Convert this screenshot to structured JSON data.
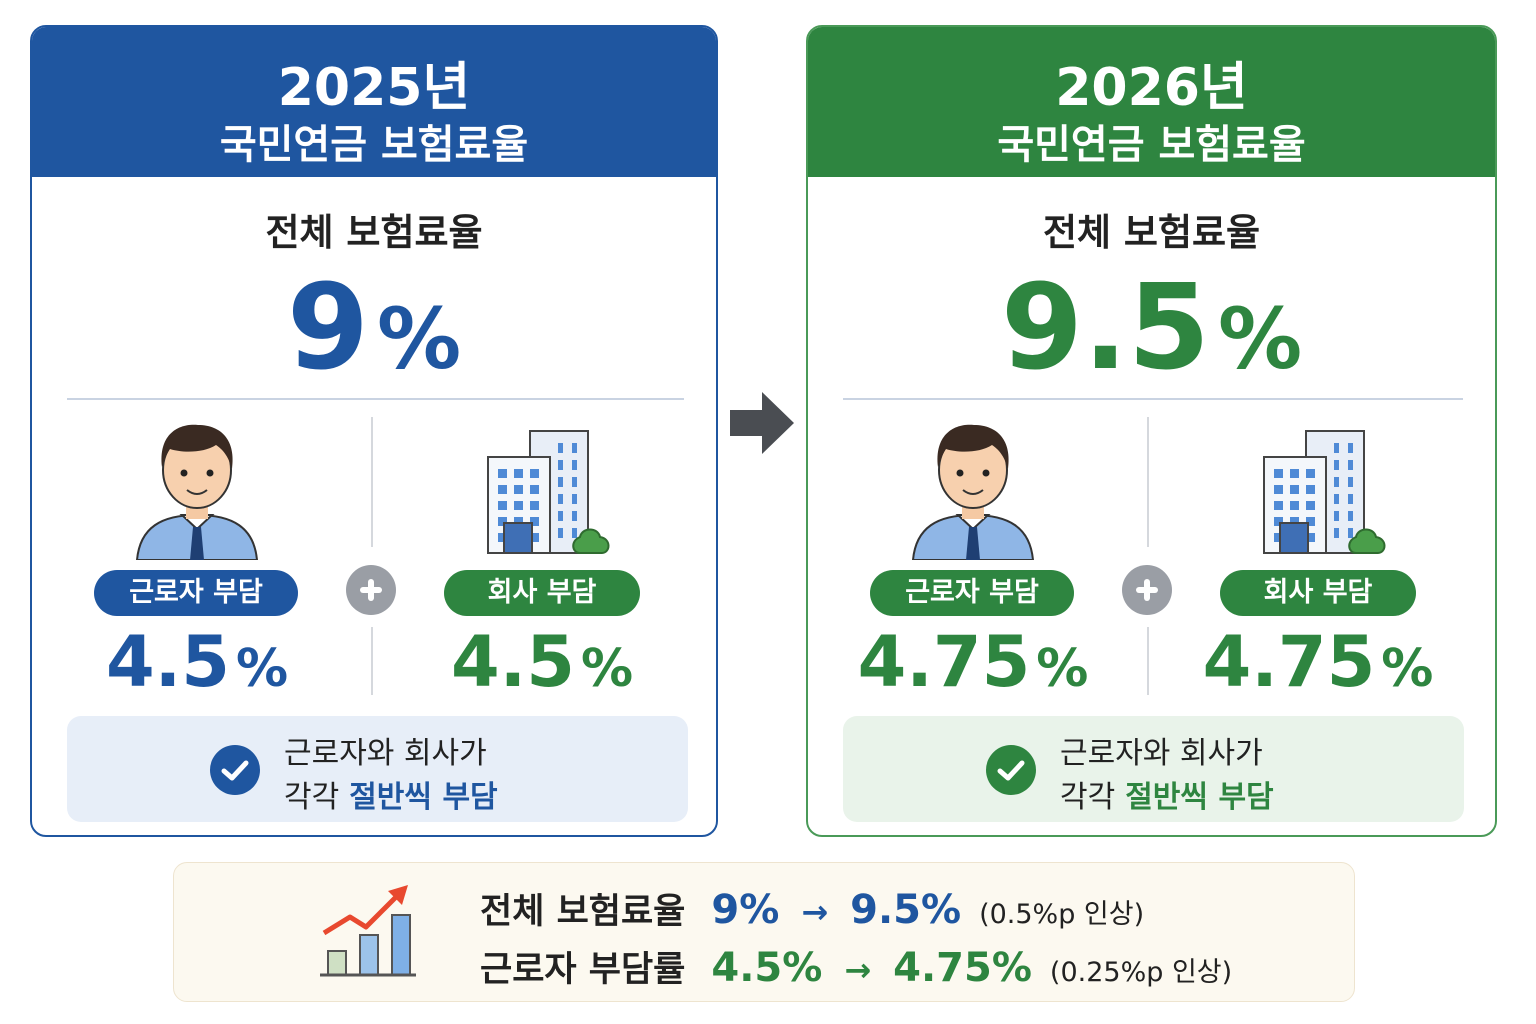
{
  "panels": [
    {
      "year": "2025년",
      "title": "국민연금 보험료율",
      "total_label": "전체 보험료율",
      "total_value": "9",
      "total_unit": "%",
      "worker": {
        "label": "근로자 부담",
        "value": "4.5",
        "unit": "%"
      },
      "company": {
        "label": "회사 부담",
        "value": "4.5",
        "unit": "%"
      },
      "note": {
        "line1": "근로자와 회사가",
        "line2_prefix": "각각",
        "line2_highlight": "절반씩 부담"
      }
    },
    {
      "year": "2026년",
      "title": "국민연금 보험료율",
      "total_label": "전체 보험료율",
      "total_value": "9.5",
      "total_unit": "%",
      "worker": {
        "label": "근로자 부담",
        "value": "4.75",
        "unit": "%"
      },
      "company": {
        "label": "회사 부담",
        "value": "4.75",
        "unit": "%"
      },
      "note": {
        "line1": "근로자와 회사가",
        "line2_prefix": "각각",
        "line2_highlight": "절반씩 부담"
      }
    }
  ],
  "summary": {
    "rows": [
      {
        "label": "전체 보험료율",
        "from": "9%",
        "arrow": "→",
        "to": "9.5%",
        "note": "(0.5%p 인상)"
      },
      {
        "label": "근로자 부담률",
        "from": "4.5%",
        "arrow": "→",
        "to": "4.75%",
        "note": "(0.25%p 인상)"
      }
    ]
  }
}
